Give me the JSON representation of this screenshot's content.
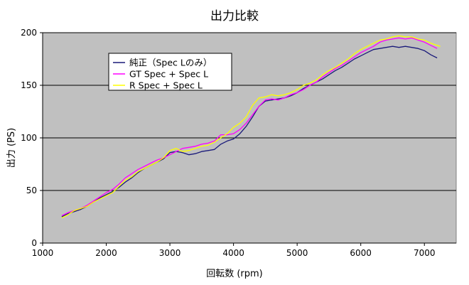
{
  "chart_data": {
    "type": "line",
    "title": "出力比較",
    "xlabel": "回転数 (rpm)",
    "ylabel": "出力 (PS)",
    "xlim": [
      1000,
      7500
    ],
    "ylim": [
      0,
      200
    ],
    "xticks": [
      1000,
      2000,
      3000,
      4000,
      5000,
      6000,
      7000
    ],
    "yticks": [
      0,
      50,
      100,
      150,
      200
    ],
    "grid": "horizontal",
    "legend_position": "top-left",
    "plot_background": "#c0c0c0",
    "series": [
      {
        "name": "純正（Spec Lのみ）",
        "color": "#1a1a7a",
        "points": [
          [
            1300,
            25
          ],
          [
            1400,
            28
          ],
          [
            1500,
            30
          ],
          [
            1600,
            32
          ],
          [
            1700,
            35
          ],
          [
            1800,
            39
          ],
          [
            1900,
            43
          ],
          [
            2000,
            46
          ],
          [
            2100,
            49
          ],
          [
            2200,
            53
          ],
          [
            2300,
            58
          ],
          [
            2400,
            62
          ],
          [
            2500,
            67
          ],
          [
            2600,
            71
          ],
          [
            2700,
            74
          ],
          [
            2800,
            77
          ],
          [
            2900,
            80
          ],
          [
            3000,
            86
          ],
          [
            3100,
            87
          ],
          [
            3200,
            86
          ],
          [
            3300,
            84
          ],
          [
            3400,
            85
          ],
          [
            3500,
            87
          ],
          [
            3600,
            88
          ],
          [
            3700,
            89
          ],
          [
            3800,
            94
          ],
          [
            3900,
            97
          ],
          [
            4000,
            99
          ],
          [
            4100,
            104
          ],
          [
            4200,
            111
          ],
          [
            4300,
            120
          ],
          [
            4400,
            130
          ],
          [
            4500,
            135
          ],
          [
            4600,
            136
          ],
          [
            4700,
            137
          ],
          [
            4800,
            138
          ],
          [
            4900,
            140
          ],
          [
            5000,
            143
          ],
          [
            5100,
            147
          ],
          [
            5200,
            150
          ],
          [
            5300,
            153
          ],
          [
            5400,
            156
          ],
          [
            5500,
            160
          ],
          [
            5600,
            164
          ],
          [
            5700,
            167
          ],
          [
            5800,
            171
          ],
          [
            5900,
            175
          ],
          [
            6000,
            178
          ],
          [
            6100,
            181
          ],
          [
            6200,
            184
          ],
          [
            6300,
            185
          ],
          [
            6400,
            186
          ],
          [
            6500,
            187
          ],
          [
            6600,
            186
          ],
          [
            6700,
            187
          ],
          [
            6800,
            186
          ],
          [
            6900,
            185
          ],
          [
            7000,
            183
          ],
          [
            7100,
            179
          ],
          [
            7200,
            176
          ]
        ]
      },
      {
        "name": "GT Spec + Spec L",
        "color": "#ff00ff",
        "points": [
          [
            1300,
            26
          ],
          [
            1400,
            29
          ],
          [
            1500,
            31
          ],
          [
            1600,
            33
          ],
          [
            1700,
            36
          ],
          [
            1800,
            40
          ],
          [
            1900,
            44
          ],
          [
            2000,
            48
          ],
          [
            2100,
            51
          ],
          [
            2200,
            56
          ],
          [
            2300,
            62
          ],
          [
            2400,
            66
          ],
          [
            2500,
            70
          ],
          [
            2600,
            73
          ],
          [
            2700,
            76
          ],
          [
            2800,
            79
          ],
          [
            2900,
            81
          ],
          [
            3000,
            84
          ],
          [
            3100,
            87
          ],
          [
            3200,
            90
          ],
          [
            3300,
            91
          ],
          [
            3400,
            92
          ],
          [
            3500,
            94
          ],
          [
            3600,
            95
          ],
          [
            3700,
            97
          ],
          [
            3800,
            103
          ],
          [
            3900,
            103
          ],
          [
            4000,
            104
          ],
          [
            4100,
            108
          ],
          [
            4200,
            114
          ],
          [
            4300,
            122
          ],
          [
            4400,
            130
          ],
          [
            4500,
            136
          ],
          [
            4600,
            137
          ],
          [
            4700,
            136
          ],
          [
            4800,
            138
          ],
          [
            4900,
            141
          ],
          [
            5000,
            143
          ],
          [
            5100,
            146
          ],
          [
            5200,
            150
          ],
          [
            5300,
            153
          ],
          [
            5400,
            158
          ],
          [
            5500,
            162
          ],
          [
            5600,
            166
          ],
          [
            5700,
            169
          ],
          [
            5800,
            173
          ],
          [
            5900,
            177
          ],
          [
            6000,
            181
          ],
          [
            6100,
            184
          ],
          [
            6200,
            187
          ],
          [
            6300,
            191
          ],
          [
            6400,
            193
          ],
          [
            6500,
            194
          ],
          [
            6600,
            195
          ],
          [
            6700,
            194
          ],
          [
            6800,
            195
          ],
          [
            6900,
            193
          ],
          [
            7000,
            191
          ],
          [
            7100,
            188
          ],
          [
            7200,
            185
          ]
        ]
      },
      {
        "name": "R Spec + Spec L",
        "color": "#ffff00",
        "points": [
          [
            1300,
            24
          ],
          [
            1400,
            27
          ],
          [
            1500,
            31
          ],
          [
            1600,
            33
          ],
          [
            1700,
            35
          ],
          [
            1800,
            39
          ],
          [
            1900,
            42
          ],
          [
            2000,
            45
          ],
          [
            2100,
            48
          ],
          [
            2200,
            54
          ],
          [
            2300,
            60
          ],
          [
            2400,
            63
          ],
          [
            2500,
            68
          ],
          [
            2600,
            71
          ],
          [
            2700,
            74
          ],
          [
            2800,
            77
          ],
          [
            2900,
            81
          ],
          [
            3000,
            88
          ],
          [
            3100,
            90
          ],
          [
            3200,
            87
          ],
          [
            3300,
            88
          ],
          [
            3400,
            90
          ],
          [
            3500,
            92
          ],
          [
            3600,
            93
          ],
          [
            3700,
            96
          ],
          [
            3800,
            100
          ],
          [
            3900,
            104
          ],
          [
            4000,
            110
          ],
          [
            4100,
            114
          ],
          [
            4200,
            120
          ],
          [
            4300,
            131
          ],
          [
            4400,
            138
          ],
          [
            4500,
            139
          ],
          [
            4600,
            141
          ],
          [
            4700,
            140
          ],
          [
            4800,
            141
          ],
          [
            4900,
            143
          ],
          [
            5000,
            146
          ],
          [
            5100,
            150
          ],
          [
            5200,
            152
          ],
          [
            5300,
            155
          ],
          [
            5400,
            160
          ],
          [
            5500,
            164
          ],
          [
            5600,
            167
          ],
          [
            5700,
            171
          ],
          [
            5800,
            175
          ],
          [
            5900,
            180
          ],
          [
            6000,
            184
          ],
          [
            6100,
            187
          ],
          [
            6200,
            190
          ],
          [
            6300,
            193
          ],
          [
            6400,
            194
          ],
          [
            6500,
            196
          ],
          [
            6600,
            197
          ],
          [
            6700,
            196
          ],
          [
            6800,
            196
          ],
          [
            6900,
            194
          ],
          [
            7000,
            193
          ],
          [
            7100,
            190
          ],
          [
            7200,
            188
          ],
          [
            7250,
            187
          ]
        ]
      }
    ]
  }
}
